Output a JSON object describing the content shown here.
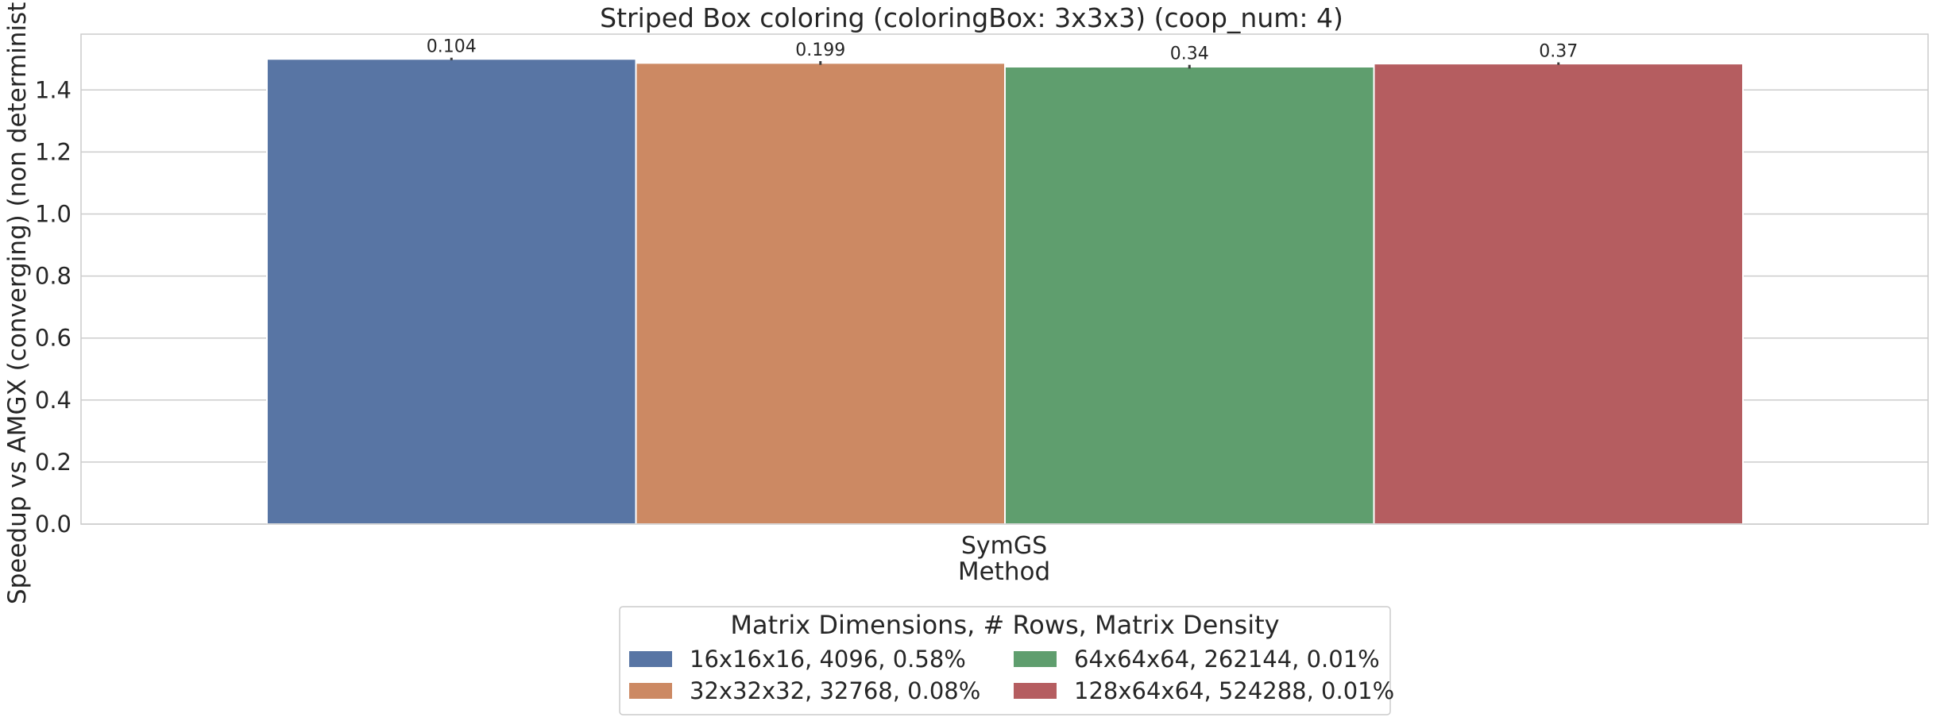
{
  "chart_data": {
    "type": "bar",
    "title": "Striped Box coloring (coloringBox: 3x3x3) (coop_num: 4)",
    "xlabel": "Method",
    "ylabel": "Speedup vs AMGX (converging) (non deterministic)",
    "categories": [
      "SymGS"
    ],
    "ylim": [
      0,
      1.58
    ],
    "yticks": [
      "0.0",
      "0.2",
      "0.4",
      "0.6",
      "0.8",
      "1.0",
      "1.2",
      "1.4"
    ],
    "grid": true,
    "legend": {
      "title": "Matrix Dimensions, # Rows, Matrix Density",
      "placement": "bottom-center",
      "columns": 2
    },
    "series": [
      {
        "name": "16x16x16, 4096, 0.58%",
        "values": [
          1.5
        ],
        "error": [
          0.004
        ],
        "label": "0.104",
        "color": "#5875a4"
      },
      {
        "name": "32x32x32, 32768, 0.08%",
        "values": [
          1.487
        ],
        "error": [
          0.006
        ],
        "label": "0.199",
        "color": "#cc8963"
      },
      {
        "name": "64x64x64, 262144, 0.01%",
        "values": [
          1.475
        ],
        "error": [
          0.006
        ],
        "label": "0.34",
        "color": "#5f9e6e"
      },
      {
        "name": "128x64x64, 524288, 0.01%",
        "values": [
          1.485
        ],
        "error": [
          0.004
        ],
        "label": "0.37",
        "color": "#b55d60"
      }
    ]
  }
}
